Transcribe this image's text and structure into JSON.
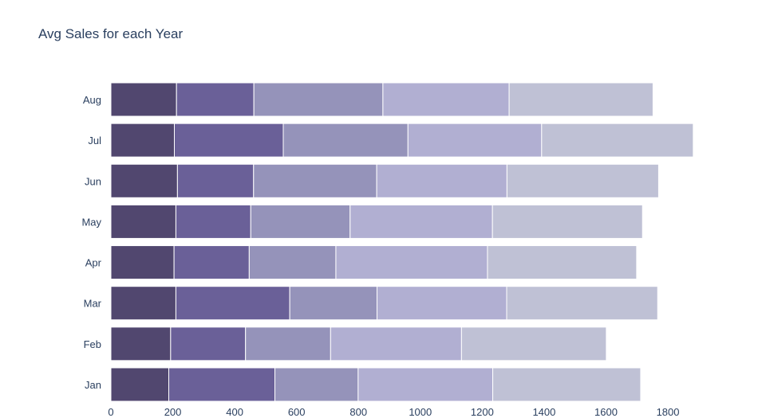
{
  "chart_data": {
    "type": "bar",
    "orientation": "horizontal",
    "stacked": true,
    "title": "Avg Sales for each Year",
    "xlabel": "",
    "ylabel": "",
    "categories": [
      "Jan",
      "Feb",
      "Mar",
      "Apr",
      "May",
      "Jun",
      "Jul",
      "Aug"
    ],
    "xlim": [
      0,
      1880
    ],
    "x_ticks": [
      0,
      200,
      400,
      600,
      800,
      1000,
      1200,
      1400,
      1600,
      1800
    ],
    "series": [
      {
        "values": [
          187,
          193,
          210,
          204,
          210,
          215,
          205,
          212
        ],
        "color": "#51476f"
      },
      {
        "values": [
          343,
          242,
          368,
          243,
          242,
          246,
          352,
          250
        ],
        "color": "#6a6098"
      },
      {
        "values": [
          269,
          275,
          282,
          280,
          321,
          398,
          403,
          417
        ],
        "color": "#9593ba"
      },
      {
        "values": [
          435,
          423,
          419,
          490,
          460,
          421,
          432,
          408
        ],
        "color": "#b1afd2"
      },
      {
        "values": [
          478,
          468,
          488,
          482,
          485,
          490,
          490,
          465
        ],
        "color": "#bfc1d5"
      }
    ],
    "grid": false,
    "legend": "none"
  }
}
